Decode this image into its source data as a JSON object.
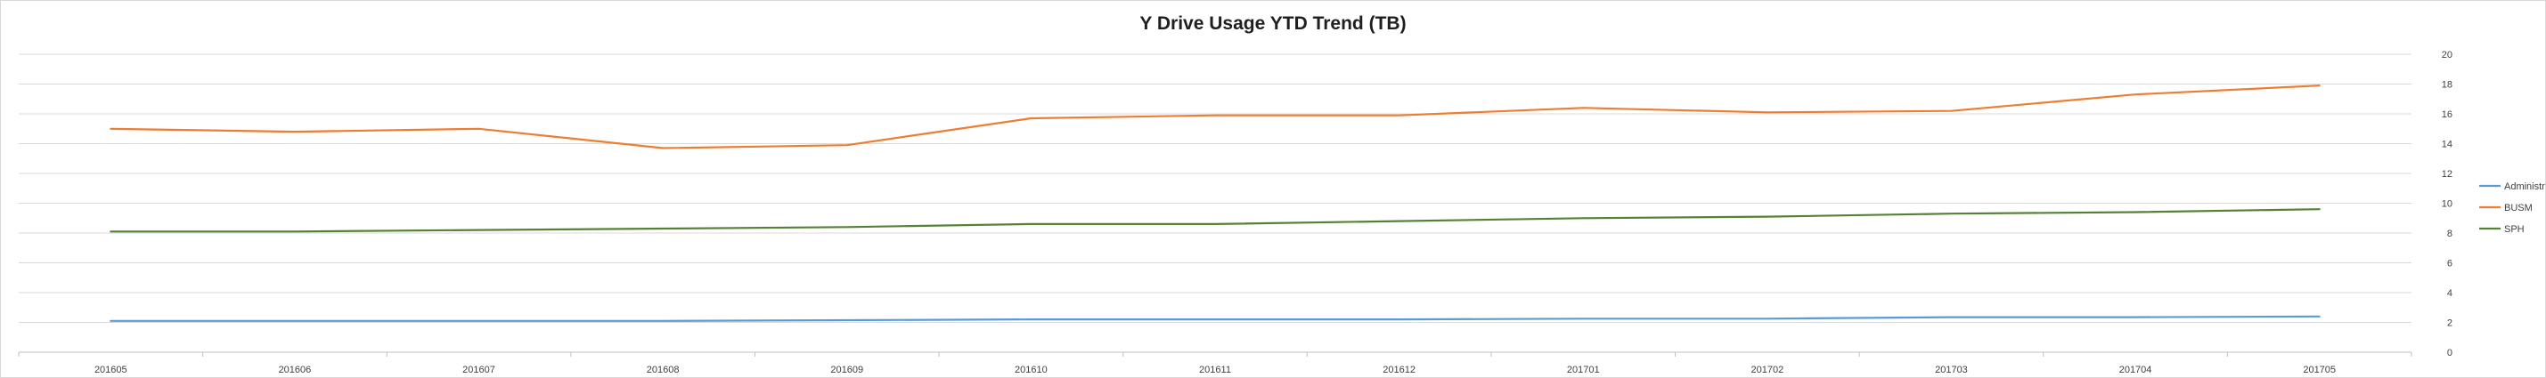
{
  "chart_data": {
    "type": "line",
    "title": "Y Drive Usage YTD Trend (TB)",
    "xlabel": "",
    "ylabel": "",
    "categories": [
      "201605",
      "201606",
      "201607",
      "201608",
      "201609",
      "201610",
      "201611",
      "201612",
      "201701",
      "201702",
      "201703",
      "201704",
      "201705"
    ],
    "ylim": [
      0,
      20
    ],
    "yticks": [
      0,
      2,
      4,
      6,
      8,
      10,
      12,
      14,
      16,
      18,
      20
    ],
    "y_axis_side": "right",
    "grid": true,
    "legend_position": "right",
    "series": [
      {
        "name": "Administration",
        "color": "#5b9bd5",
        "values": [
          2.1,
          2.1,
          2.1,
          2.1,
          2.15,
          2.2,
          2.2,
          2.2,
          2.25,
          2.25,
          2.35,
          2.35,
          2.4
        ]
      },
      {
        "name": "BUSM",
        "color": "#ed7d31",
        "values": [
          15.0,
          14.8,
          15.0,
          13.7,
          13.9,
          15.7,
          15.9,
          15.9,
          16.4,
          16.1,
          16.2,
          17.3,
          17.9
        ]
      },
      {
        "name": "SPH",
        "color": "#548235",
        "values": [
          8.1,
          8.1,
          8.2,
          8.3,
          8.4,
          8.6,
          8.6,
          8.8,
          9.0,
          9.1,
          9.3,
          9.4,
          9.6
        ]
      }
    ]
  }
}
